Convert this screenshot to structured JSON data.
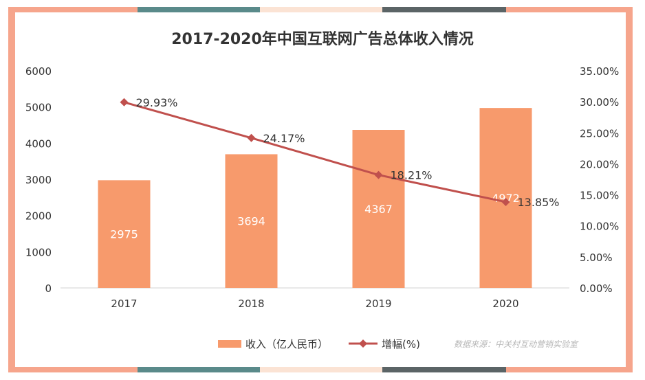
{
  "chart_data": {
    "type": "bar",
    "title": "2017-2020年中国互联网广告总体收入情况",
    "categories": [
      "2017",
      "2018",
      "2019",
      "2020"
    ],
    "series": [
      {
        "name": "收入（亿人民币）",
        "type": "bar",
        "axis": "left",
        "values": [
          2975,
          3694,
          4367,
          4972
        ],
        "value_labels": [
          "2975",
          "3694",
          "4367",
          "4972"
        ],
        "color": "#f79a6c"
      },
      {
        "name": "增幅(%)",
        "type": "line",
        "axis": "right",
        "values": [
          29.93,
          24.17,
          18.21,
          13.85
        ],
        "value_labels": [
          "29.93%",
          "24.17%",
          "18.21%",
          "13.85%"
        ],
        "color": "#c0504d",
        "marker": "diamond"
      }
    ],
    "y_left": {
      "ylim": [
        0,
        6000
      ],
      "ticks": [
        0,
        1000,
        2000,
        3000,
        4000,
        5000,
        6000
      ],
      "tick_labels": [
        "0",
        "1000",
        "2000",
        "3000",
        "4000",
        "5000",
        "6000"
      ]
    },
    "y_right": {
      "ylim": [
        0,
        35
      ],
      "ticks": [
        0,
        5,
        10,
        15,
        20,
        25,
        30,
        35
      ],
      "tick_labels": [
        "0.00%",
        "5.00%",
        "10.00%",
        "15.00%",
        "20.00%",
        "25.00%",
        "30.00%",
        "35.00%"
      ]
    },
    "grid": false,
    "legend": "bottom",
    "source": "数据来源：中关村互动营销实验室"
  },
  "colors": {
    "frame": "#f6a58c",
    "frame_accent_teal": "#5a8a8a",
    "frame_accent_peach": "#fbe3d4",
    "frame_accent_dark": "#5b6466",
    "bar": "#f79a6c",
    "line": "#c0504d",
    "text": "#333333",
    "source_text": "#b8b8b8"
  }
}
